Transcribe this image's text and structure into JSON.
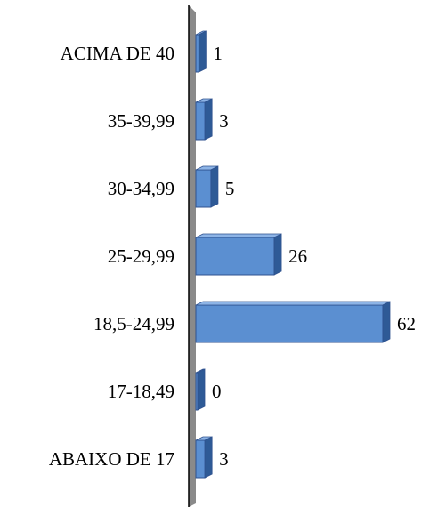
{
  "chart_data": {
    "type": "bar",
    "orientation": "horizontal",
    "style": "3d",
    "categories": [
      "ACIMA DE 40",
      "35-39,99",
      "30-34,99",
      "25-29,99",
      "18,5-24,99",
      "17-18,49",
      "ABAIXO DE 17"
    ],
    "values": [
      1,
      3,
      5,
      26,
      62,
      0,
      3
    ],
    "data_labels": [
      "1",
      "3",
      "5",
      "26",
      "62",
      "0",
      "3"
    ],
    "title": "",
    "xlabel": "",
    "ylabel": "",
    "xlim": [
      0,
      62
    ],
    "grid": false,
    "legend": "none",
    "colors": {
      "bar_front": "#5b8fd1",
      "bar_side": "#2e5a96",
      "bar_top": "#8db4e6",
      "bar_stroke": "#2f528f",
      "axis_wall": "#8a8a8a",
      "text": "#000000"
    }
  }
}
